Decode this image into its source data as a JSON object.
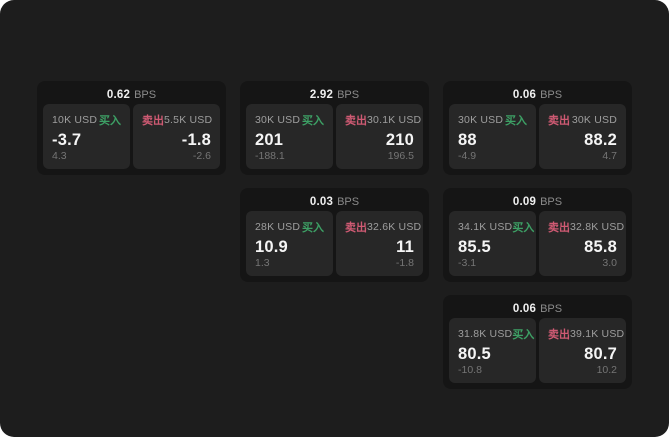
{
  "colors": {
    "background": "#1d1d1d",
    "card_background": "#151515",
    "panel_background": "#272727",
    "buy_green": "#3da065",
    "sell_red": "#cf5a73"
  },
  "labels": {
    "bps_unit": "BPS",
    "buy": "买入",
    "sell": "卖出"
  },
  "cards": [
    {
      "col": 1,
      "row": 1,
      "bps": "0.62",
      "buy": {
        "size": "10K USD",
        "value": "-3.7",
        "sub": "4.3"
      },
      "sell": {
        "size": "5.5K USD",
        "value": "-1.8",
        "sub": "-2.6"
      }
    },
    {
      "col": 2,
      "row": 1,
      "bps": "2.92",
      "buy": {
        "size": "30K USD",
        "value": "201",
        "sub": "-188.1"
      },
      "sell": {
        "size": "30.1K USD",
        "value": "210",
        "sub": "196.5"
      }
    },
    {
      "col": 3,
      "row": 1,
      "bps": "0.06",
      "buy": {
        "size": "30K USD",
        "value": "88",
        "sub": "-4.9"
      },
      "sell": {
        "size": "30K USD",
        "value": "88.2",
        "sub": "4.7"
      }
    },
    {
      "col": 2,
      "row": 2,
      "bps": "0.03",
      "buy": {
        "size": "28K USD",
        "value": "10.9",
        "sub": "1.3"
      },
      "sell": {
        "size": "32.6K USD",
        "value": "11",
        "sub": "-1.8"
      }
    },
    {
      "col": 3,
      "row": 2,
      "bps": "0.09",
      "buy": {
        "size": "34.1K USD",
        "value": "85.5",
        "sub": "-3.1"
      },
      "sell": {
        "size": "32.8K USD",
        "value": "85.8",
        "sub": "3.0"
      }
    },
    {
      "col": 3,
      "row": 3,
      "bps": "0.06",
      "buy": {
        "size": "31.8K USD",
        "value": "80.5",
        "sub": "-10.8"
      },
      "sell": {
        "size": "39.1K USD",
        "value": "80.7",
        "sub": "10.2"
      }
    }
  ]
}
